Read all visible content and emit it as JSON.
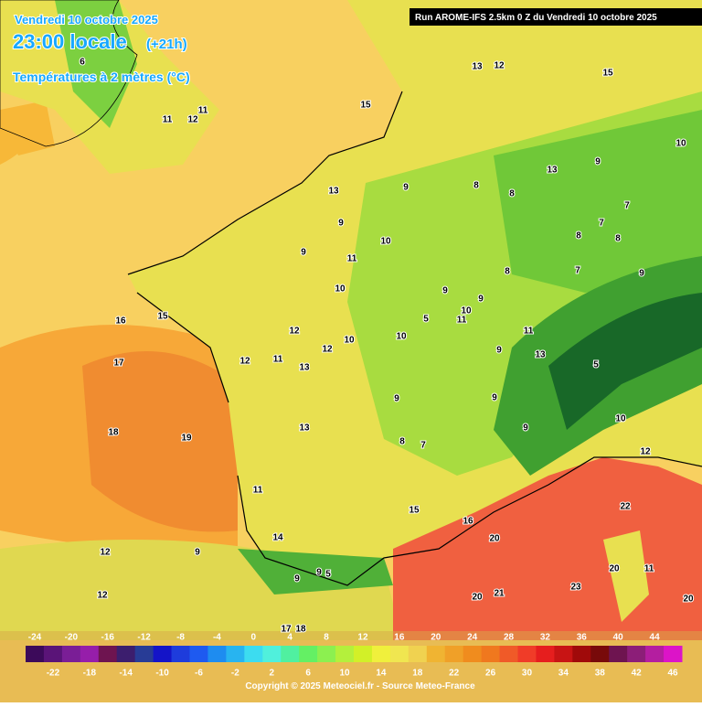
{
  "header": {
    "date": "Vendredi 10 octobre 2025",
    "time": "23:00 locale",
    "offset": "(+21h)",
    "parameter": "Températures à 2 mètres (°C)",
    "run": "Run AROME-IFS 2.5km 0 Z du Vendredi 10 octobre 2025"
  },
  "map_labels": [
    6,
    11,
    12,
    11,
    13,
    12,
    15,
    15,
    10,
    13,
    9,
    8,
    8,
    9,
    13,
    9,
    7,
    7,
    8,
    8,
    10,
    9,
    11,
    8,
    7,
    9,
    9,
    10,
    9,
    10,
    11,
    16,
    15,
    5,
    12,
    11,
    10,
    10,
    12,
    17,
    12,
    11,
    13,
    9,
    13,
    5,
    9,
    9,
    10,
    18,
    19,
    13,
    9,
    8,
    7,
    12,
    11,
    22,
    15,
    16,
    20,
    14,
    9,
    12,
    5,
    9,
    9,
    23,
    20,
    11,
    12,
    20,
    21,
    20,
    17,
    18
  ],
  "legend": {
    "labels": [
      -24,
      -22,
      -20,
      -18,
      -16,
      -14,
      -12,
      -10,
      -8,
      -6,
      -4,
      -2,
      0,
      2,
      4,
      6,
      8,
      10,
      12,
      14,
      16,
      18,
      20,
      22,
      24,
      26,
      28,
      30,
      32,
      34,
      36,
      38,
      40,
      42,
      44,
      46
    ],
    "colors": [
      "#3c0a5a",
      "#5a1478",
      "#7a1e96",
      "#961eaa",
      "#6e1450",
      "#3c1e6e",
      "#283c96",
      "#1414c8",
      "#1e3cdc",
      "#1e5af0",
      "#1e8cf0",
      "#28b4f0",
      "#3cdcf0",
      "#50f0dc",
      "#50f0a0",
      "#64f064",
      "#8cf050",
      "#b4f03c",
      "#d2f028",
      "#f0f03c",
      "#f0e650",
      "#f0d250",
      "#f0b432",
      "#f0a028",
      "#f08c1e",
      "#f0781e",
      "#f05a28",
      "#f03c28",
      "#e61e1e",
      "#c81414",
      "#a00a0a",
      "#780a0a",
      "#6e1450",
      "#8c1e78",
      "#b41ea0",
      "#dc14c8"
    ]
  },
  "footer": {
    "copyright": "Copyright © 2025 Meteociel.fr - Source Meteo-France"
  }
}
